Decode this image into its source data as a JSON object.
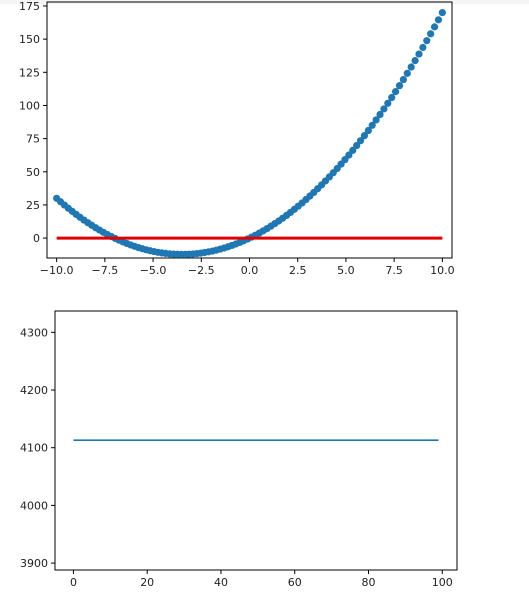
{
  "chart_data": [
    {
      "type": "scatter",
      "title": "",
      "xlabel": "",
      "ylabel": "",
      "xlim": [
        -10.5,
        10.5
      ],
      "ylim": [
        -15,
        178
      ],
      "xticks": [
        -10.0,
        -7.5,
        -5.0,
        -2.5,
        0.0,
        2.5,
        5.0,
        7.5,
        10.0
      ],
      "xtick_labels": [
        "−10.0",
        "−7.5",
        "−5.0",
        "−2.5",
        "0.0",
        "2.5",
        "5.0",
        "7.5",
        "10.0"
      ],
      "yticks": [
        0,
        25,
        50,
        75,
        100,
        125,
        150,
        175
      ],
      "ytick_labels": [
        "0",
        "25",
        "50",
        "75",
        "100",
        "125",
        "150",
        "175"
      ],
      "grid": false,
      "series": [
        {
          "type": "scatter",
          "color": "#1f77b4",
          "x_start": -10,
          "x_end": 10,
          "count": 100,
          "coefficients": [
            0,
            7,
            1
          ]
        },
        {
          "type": "line",
          "color": "#e00000",
          "x": [
            -10,
            10
          ],
          "y": [
            0,
            0
          ]
        }
      ]
    },
    {
      "type": "line",
      "title": "",
      "xlabel": "",
      "ylabel": "",
      "xlim": [
        -5,
        104
      ],
      "ylim": [
        3888,
        4337
      ],
      "xticks": [
        0,
        20,
        40,
        60,
        80,
        100
      ],
      "xtick_labels": [
        "0",
        "20",
        "40",
        "60",
        "80",
        "100"
      ],
      "yticks": [
        3900,
        4000,
        4100,
        4200,
        4300
      ],
      "ytick_labels": [
        "3900",
        "4000",
        "4100",
        "4200",
        "4300"
      ],
      "grid": false,
      "series": [
        {
          "type": "line",
          "color": "#1f77b4",
          "x": [
            0,
            99
          ],
          "y": [
            4113,
            4113
          ]
        }
      ]
    }
  ]
}
